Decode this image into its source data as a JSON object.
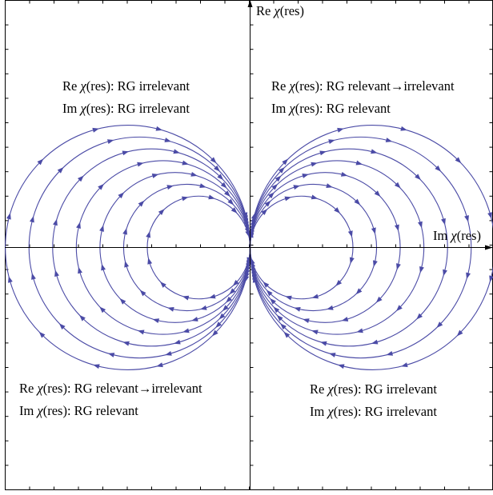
{
  "axes": {
    "y_label": {
      "prefix": "Re ",
      "chi": "χ",
      "suffix": "(res)"
    },
    "x_label": {
      "prefix": "Im ",
      "chi": "χ",
      "suffix": "(res)"
    }
  },
  "quadrants": {
    "top_left": {
      "line1": {
        "prefix": "Re ",
        "chi": "χ",
        "suffix": "(res): RG irrelevant"
      },
      "line2": {
        "prefix": "Im ",
        "chi": "χ",
        "suffix": "(res): RG irrelevant"
      }
    },
    "top_right": {
      "line1": {
        "prefix": "Re ",
        "chi": "χ",
        "suffix": "(res): RG relevant→irrelevant"
      },
      "line2": {
        "prefix": "Im ",
        "chi": "χ",
        "suffix": "(res): RG relevant"
      }
    },
    "bottom_left": {
      "line1": {
        "prefix": "Re ",
        "chi": "χ",
        "suffix": "(res): RG relevant→irrelevant"
      },
      "line2": {
        "prefix": "Im ",
        "chi": "χ",
        "suffix": "(res): RG relevant"
      }
    },
    "bottom_right": {
      "line1": {
        "prefix": "Re ",
        "chi": "χ",
        "suffix": "(res): RG irrelevant"
      },
      "line2": {
        "prefix": "Im ",
        "chi": "χ",
        "suffix": "(res): RG irrelevant"
      }
    }
  },
  "flow_lines": {
    "color": "#4b4ba6",
    "diameters": [
      1.0,
      1.23,
      1.46,
      1.69,
      1.92,
      2.15,
      2.38
    ],
    "arrows_per_circle": 12,
    "direction": "clockwise"
  },
  "style": {
    "axis_color": "#000000",
    "background": "#ffffff"
  }
}
